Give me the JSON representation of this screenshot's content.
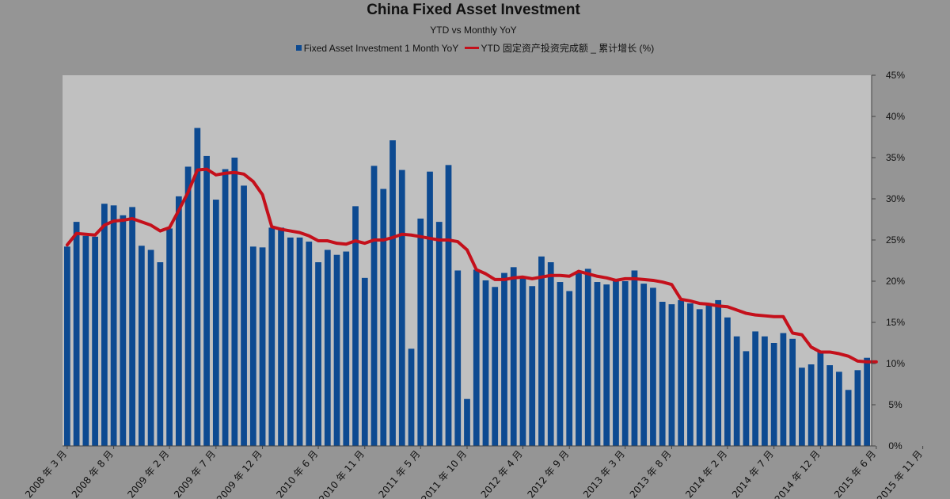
{
  "chart_data": {
    "type": "bar",
    "title": "China Fixed Asset Investment",
    "subtitle": "YTD vs Monthly YoY",
    "legend_position": "top",
    "colors": {
      "bars": "#0d4a91",
      "line": "#c4101b",
      "plot_background": "#c0c0c0",
      "page_background": "#959595"
    },
    "y_axis": {
      "position": "right",
      "ylim": [
        0,
        45
      ],
      "ticks": [
        0,
        5,
        10,
        15,
        20,
        25,
        30,
        35,
        40,
        45
      ],
      "tick_labels": [
        "0%",
        "5%",
        "10%",
        "15%",
        "20%",
        "25%",
        "30%",
        "35%",
        "40%",
        "45%"
      ],
      "grid": false
    },
    "x_tick_labels": [
      {
        "label": "2008 年 3 月",
        "index": 0
      },
      {
        "label": "2008 年 8 月",
        "index": 5
      },
      {
        "label": "2009 年 2 月",
        "index": 11
      },
      {
        "label": "2009 年 7 月",
        "index": 16
      },
      {
        "label": "2009 年 12 月",
        "index": 21
      },
      {
        "label": "2010 年 6 月",
        "index": 27
      },
      {
        "label": "2010 年 11 月",
        "index": 32
      },
      {
        "label": "2011 年 5 月",
        "index": 38
      },
      {
        "label": "2011 年 10 月",
        "index": 43
      },
      {
        "label": "2012 年 4 月",
        "index": 49
      },
      {
        "label": "2012 年 9 月",
        "index": 54
      },
      {
        "label": "2013 年 3 月",
        "index": 60
      },
      {
        "label": "2013 年 8 月",
        "index": 65
      },
      {
        "label": "2014 年 2 月",
        "index": 71
      },
      {
        "label": "2014 年 7 月",
        "index": 76
      },
      {
        "label": "2014 年 12 月",
        "index": 81
      },
      {
        "label": "2015 年 6 月",
        "index": 87
      },
      {
        "label": "2015 年 11 月",
        "index": 92
      }
    ],
    "series": [
      {
        "name": "Fixed Asset Investment 1 Month YoY",
        "type": "bar",
        "values": [
          24.2,
          27.2,
          25.5,
          25.4,
          29.4,
          29.2,
          28.0,
          29.0,
          24.3,
          23.8,
          22.3,
          26.4,
          30.3,
          33.9,
          38.6,
          35.2,
          29.9,
          33.6,
          35.0,
          31.6,
          24.2,
          24.1,
          26.5,
          26.5,
          25.3,
          25.3,
          24.8,
          22.3,
          23.8,
          23.2,
          23.6,
          29.1,
          20.4,
          34.0,
          31.2,
          37.1,
          33.5,
          11.8,
          27.6,
          33.3,
          27.2,
          34.1,
          21.3,
          5.7,
          21.4,
          20.1,
          19.3,
          21.0,
          21.7,
          20.5,
          19.4,
          23.0,
          22.3,
          19.9,
          18.8,
          21.1,
          21.5,
          19.9,
          19.6,
          20.1,
          20.0,
          21.3,
          19.7,
          19.2,
          17.5,
          17.2,
          17.7,
          17.3,
          16.6,
          17.1,
          17.7,
          15.6,
          13.3,
          11.5,
          13.9,
          13.3,
          12.5,
          13.7,
          13.0,
          9.5,
          9.9,
          11.4,
          9.8,
          9.0,
          6.8,
          9.2,
          10.7
        ]
      },
      {
        "name": "YTD 固定资产投资完成额 _ 累计增长 (%)",
        "type": "line",
        "values": [
          24.4,
          25.8,
          25.7,
          25.6,
          26.8,
          27.3,
          27.4,
          27.6,
          27.2,
          26.8,
          26.1,
          26.5,
          28.6,
          30.8,
          33.5,
          33.6,
          32.9,
          33.1,
          33.2,
          33.0,
          32.1,
          30.5,
          26.6,
          26.3,
          26.1,
          25.9,
          25.5,
          24.9,
          24.9,
          24.6,
          24.5,
          24.9,
          24.6,
          25.0,
          25.0,
          25.3,
          25.7,
          25.6,
          25.4,
          25.2,
          25.0,
          25.0,
          24.8,
          23.8,
          21.4,
          20.9,
          20.2,
          20.2,
          20.4,
          20.5,
          20.3,
          20.5,
          20.7,
          20.7,
          20.6,
          21.2,
          20.9,
          20.6,
          20.4,
          20.1,
          20.3,
          20.3,
          20.2,
          20.1,
          19.9,
          19.6,
          17.8,
          17.6,
          17.3,
          17.2,
          17.0,
          16.9,
          16.5,
          16.1,
          15.9,
          15.8,
          15.7,
          15.7,
          13.7,
          13.5,
          12.0,
          11.4,
          11.4,
          11.2,
          10.9,
          10.3,
          10.2,
          10.2
        ]
      }
    ]
  }
}
